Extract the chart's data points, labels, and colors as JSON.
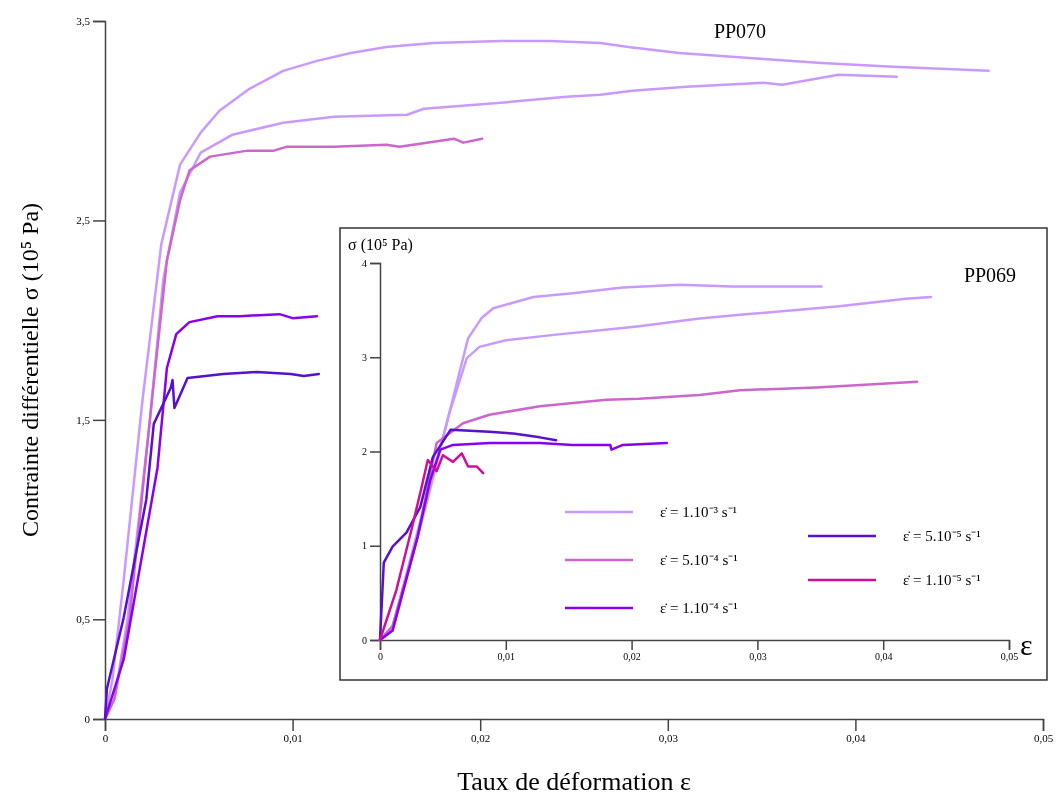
{
  "chart_data": [
    {
      "type": "line",
      "xlabel": "Taux de déformation ε",
      "ylabel": "Contrainte différentielle σ (10⁵ Pa)",
      "xlim": [
        0,
        0.05
      ],
      "xticks": [
        {
          "value": 0,
          "label": "0"
        },
        {
          "value": 0.01,
          "label": "0,01"
        },
        {
          "value": 0.02,
          "label": "0,02"
        },
        {
          "value": 0.03,
          "label": "0,03"
        },
        {
          "value": 0.04,
          "label": "0,04"
        },
        {
          "value": 0.05,
          "label": "0,05"
        }
      ],
      "ylim": [
        0,
        3.5
      ],
      "yticks": [
        {
          "value": 0,
          "label": "0"
        },
        {
          "value": 0.5,
          "label": "0,5"
        },
        {
          "value": 1.5,
          "label": "1,5"
        },
        {
          "value": 2.5,
          "label": "2,5"
        },
        {
          "value": 3.5,
          "label": "3,5"
        }
      ],
      "annotations": [
        "PP070"
      ],
      "line_style": "solid",
      "marker": "none",
      "series": [
        {
          "color": "#c89aff",
          "x": [
            0,
            0.0004,
            0.001,
            0.002,
            0.003,
            0.004,
            0.0051,
            0.0061,
            0.0077,
            0.0095,
            0.0113,
            0.0131,
            0.015,
            0.0175,
            0.0211,
            0.0237,
            0.0264,
            0.0279,
            0.0306,
            0.0351,
            0.0382,
            0.042,
            0.0471
          ],
          "values": [
            0,
            0.2,
            0.7,
            1.6,
            2.38,
            2.78,
            2.94,
            3.05,
            3.16,
            3.25,
            3.3,
            3.34,
            3.37,
            3.39,
            3.4,
            3.4,
            3.39,
            3.37,
            3.34,
            3.31,
            3.29,
            3.27,
            3.25
          ]
        },
        {
          "color": "#c89aff",
          "x": [
            0,
            0.0005,
            0.0012,
            0.0024,
            0.0031,
            0.004,
            0.0051,
            0.0068,
            0.0095,
            0.0122,
            0.0161,
            0.017,
            0.0211,
            0.0246,
            0.0264,
            0.0281,
            0.031,
            0.0351,
            0.0361,
            0.0391,
            0.0422
          ],
          "values": [
            0,
            0.1,
            0.5,
            1.5,
            2.2,
            2.64,
            2.84,
            2.93,
            2.99,
            3.02,
            3.03,
            3.06,
            3.09,
            3.12,
            3.13,
            3.15,
            3.17,
            3.19,
            3.18,
            3.23,
            3.22
          ]
        },
        {
          "color": "#cc66cc",
          "x": [
            0,
            0.0005,
            0.0013,
            0.0025,
            0.0033,
            0.004,
            0.0045,
            0.0056,
            0.0076,
            0.009,
            0.0097,
            0.0122,
            0.015,
            0.0157,
            0.0186,
            0.0191,
            0.0201
          ],
          "values": [
            0,
            0.1,
            0.5,
            1.6,
            2.3,
            2.6,
            2.75,
            2.82,
            2.85,
            2.85,
            2.87,
            2.87,
            2.88,
            2.87,
            2.91,
            2.89,
            2.91
          ]
        },
        {
          "color": "#8800ee",
          "x": [
            0,
            0.001,
            0.0028,
            0.0033,
            0.0038,
            0.0045,
            0.006,
            0.0072,
            0.0093,
            0.01,
            0.0113
          ],
          "values": [
            0,
            0.3,
            1.26,
            1.76,
            1.93,
            1.99,
            2.02,
            2.02,
            2.03,
            2.01,
            2.02
          ]
        },
        {
          "color": "#5511cc",
          "x": [
            0,
            0.0001,
            0.001,
            0.0022,
            0.0026,
            0.0035,
            0.0036,
            0.0037,
            0.0044,
            0.0063,
            0.0081,
            0.0099,
            0.0106,
            0.0114
          ],
          "values": [
            0,
            0.15,
            0.51,
            1.1,
            1.48,
            1.66,
            1.7,
            1.56,
            1.71,
            1.73,
            1.74,
            1.73,
            1.72,
            1.73
          ]
        }
      ]
    },
    {
      "type": "line",
      "xlabel": "ε",
      "ylabel": "σ (10⁵ Pa)",
      "xlim": [
        0,
        0.05
      ],
      "xticks": [
        {
          "value": 0,
          "label": "0"
        },
        {
          "value": 0.01,
          "label": "0,01"
        },
        {
          "value": 0.02,
          "label": "0,02"
        },
        {
          "value": 0.03,
          "label": "0,03"
        },
        {
          "value": 0.04,
          "label": "0,04"
        },
        {
          "value": 0.05,
          "label": "0,05"
        }
      ],
      "ylim": [
        0,
        4
      ],
      "yticks": [
        0,
        1,
        2,
        3,
        4
      ],
      "annotations": [
        "PP069"
      ],
      "legend": "bottom right",
      "line_style": "solid",
      "marker": "none",
      "series": [
        {
          "name": "ε̇ = 1.10⁻³ s⁻¹",
          "color": "#c89aff",
          "x": [
            0,
            0.001,
            0.0037,
            0.0053,
            0.007,
            0.0081,
            0.009,
            0.0122,
            0.0153,
            0.0193,
            0.0238,
            0.028,
            0.0351
          ],
          "values": [
            0,
            0.14,
            1.52,
            2.3,
            3.2,
            3.42,
            3.52,
            3.64,
            3.68,
            3.74,
            3.77,
            3.75,
            3.75
          ]
        },
        {
          "color": "#c89aff",
          "x": [
            0,
            0.001,
            0.0037,
            0.0055,
            0.0069,
            0.0079,
            0.01,
            0.014,
            0.0193,
            0.0206,
            0.0254,
            0.0286,
            0.0365,
            0.0418,
            0.0438
          ],
          "values": [
            0,
            0.1,
            1.45,
            2.4,
            2.99,
            3.11,
            3.18,
            3.24,
            3.31,
            3.33,
            3.41,
            3.45,
            3.54,
            3.62,
            3.64
          ]
        },
        {
          "name": "ε̇ = 5.10⁻⁴ s⁻¹",
          "color": "#cc66cc",
          "x": [
            0,
            0.001,
            0.003,
            0.0045,
            0.0066,
            0.0087,
            0.0127,
            0.018,
            0.0206,
            0.0254,
            0.0286,
            0.0347,
            0.0427
          ],
          "values": [
            0,
            0.15,
            1.1,
            2.09,
            2.3,
            2.39,
            2.48,
            2.55,
            2.56,
            2.6,
            2.65,
            2.68,
            2.74
          ]
        },
        {
          "name": "ε̇ = 1.10⁻⁴ s⁻¹",
          "color": "#8800ee",
          "x": [
            0,
            0.001,
            0.003,
            0.004,
            0.0048,
            0.0058,
            0.0087,
            0.0127,
            0.0153,
            0.0183,
            0.0184,
            0.0193,
            0.0228
          ],
          "values": [
            0,
            0.1,
            1.1,
            1.7,
            2.02,
            2.07,
            2.09,
            2.09,
            2.07,
            2.07,
            2.02,
            2.07,
            2.09
          ]
        },
        {
          "name": "ε̇ = 5.10⁻⁵ s⁻¹",
          "color": "#5511cc",
          "x": [
            0,
            0.0003,
            0.001,
            0.0021,
            0.0032,
            0.0042,
            0.0056,
            0.0087,
            0.0106,
            0.0127,
            0.014
          ],
          "values": [
            0,
            0.82,
            0.99,
            1.14,
            1.41,
            1.94,
            2.23,
            2.21,
            2.19,
            2.15,
            2.12
          ]
        },
        {
          "name": "ε̇ = 1.10⁻⁵ s⁻¹",
          "color": "#cc1199",
          "x": [
            0,
            0.0013,
            0.0025,
            0.0032,
            0.0038,
            0.0045,
            0.005,
            0.0058,
            0.0065,
            0.007,
            0.0077,
            0.0082
          ],
          "values": [
            0,
            0.53,
            1.17,
            1.56,
            1.91,
            1.79,
            1.96,
            1.89,
            1.98,
            1.84,
            1.84,
            1.77
          ]
        }
      ]
    }
  ]
}
